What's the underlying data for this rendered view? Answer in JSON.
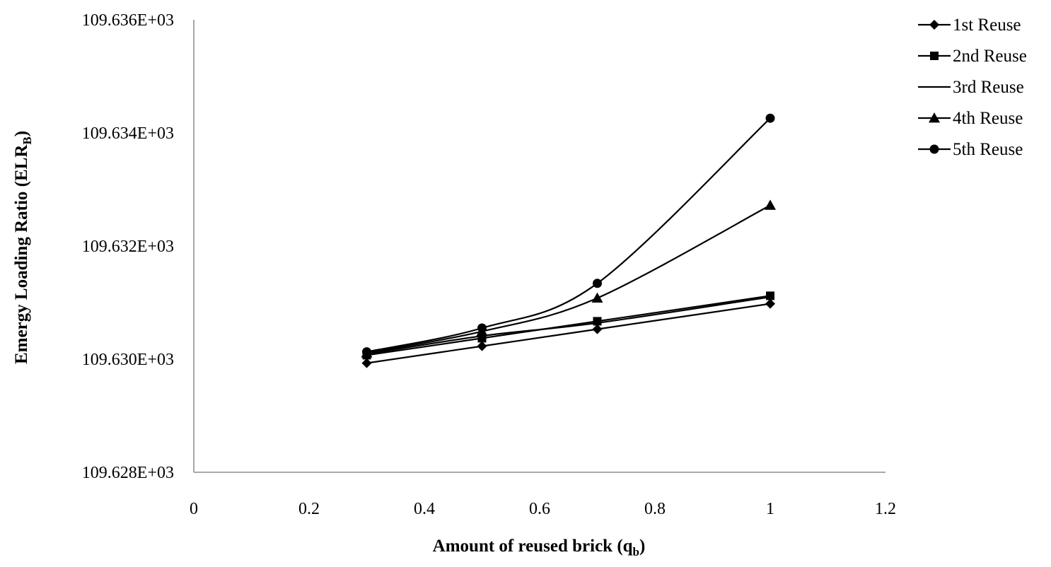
{
  "chart_data": {
    "type": "line",
    "title": "",
    "xlabel": "Amount of  reused brick (q",
    "xlabel_sub": "b",
    "xlabel_suffix": ")",
    "ylabel": "Emergy Loading Ratio (ELR",
    "ylabel_sub": "B",
    "ylabel_suffix": ")",
    "xlim": [
      0,
      1.2
    ],
    "ylim": [
      109.628,
      109.636
    ],
    "x_ticks": [
      0,
      0.2,
      0.4,
      0.6,
      0.8,
      1,
      1.2
    ],
    "x_tick_labels": [
      "0",
      "0.2",
      "0.4",
      "0.6",
      "0.8",
      "1",
      "1.2"
    ],
    "y_ticks": [
      109.628,
      109.63,
      109.632,
      109.634,
      109.636
    ],
    "y_tick_labels": [
      "109.628E+03",
      "109.630E+03",
      "109.632E+03",
      "109.634E+03",
      "109.636E+03"
    ],
    "grid": false,
    "legend_position": "right",
    "series": [
      {
        "name": "1st Reuse",
        "marker": "diamond",
        "x": [
          0.3,
          0.5,
          0.7,
          1.0
        ],
        "y": [
          109.62993,
          109.63023,
          109.63053,
          109.63098
        ]
      },
      {
        "name": "2nd Reuse",
        "marker": "square",
        "x": [
          0.3,
          0.5,
          0.7,
          1.0
        ],
        "y": [
          109.63007,
          109.63037,
          109.63067,
          109.63112
        ]
      },
      {
        "name": "3rd Reuse",
        "marker": "none",
        "x": [
          0.3,
          0.5,
          0.7,
          1.0
        ],
        "y": [
          109.63009,
          109.63041,
          109.63064,
          109.6311
        ]
      },
      {
        "name": "4th Reuse",
        "marker": "triangle",
        "x": [
          0.3,
          0.5,
          0.7,
          1.0
        ],
        "y": [
          109.63011,
          109.63049,
          109.63108,
          109.63272
        ]
      },
      {
        "name": "5th Reuse",
        "marker": "circle",
        "x": [
          0.3,
          0.5,
          0.7,
          1.0
        ],
        "y": [
          109.63013,
          109.63055,
          109.63134,
          109.63426
        ]
      }
    ]
  }
}
